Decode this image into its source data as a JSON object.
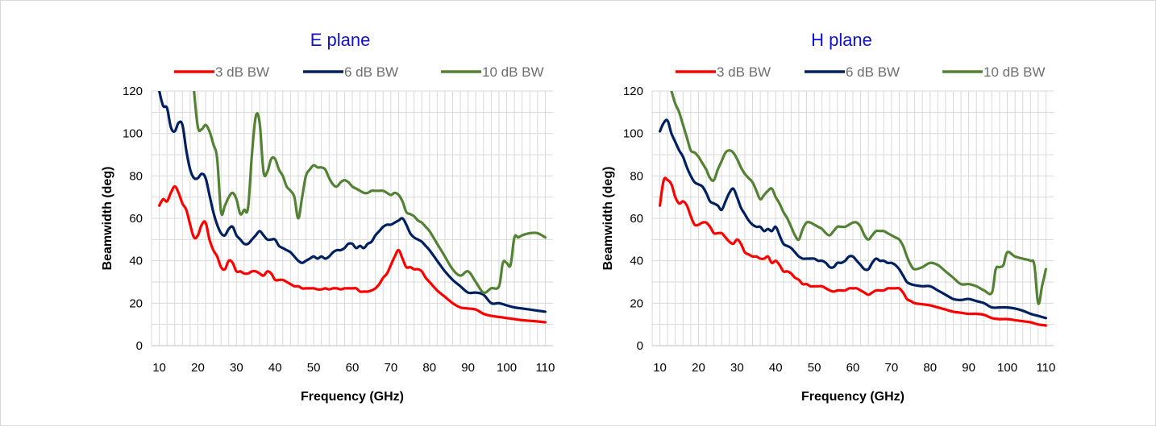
{
  "chart_data": [
    {
      "type": "line",
      "title": "E plane",
      "xlabel": "Frequency  (GHz)",
      "ylabel": "Beamwidth  (deg)",
      "xlim": [
        8,
        112
      ],
      "ylim": [
        0,
        120
      ],
      "xticks": [
        10,
        20,
        30,
        40,
        50,
        60,
        70,
        80,
        90,
        100,
        110
      ],
      "yticks": [
        0,
        20,
        40,
        60,
        80,
        100,
        120
      ],
      "grid": true,
      "legend": "top",
      "series": [
        {
          "name": "3 dB BW",
          "color": "#ff0000",
          "x": [
            10,
            11,
            12,
            13,
            14,
            15,
            16,
            17,
            18,
            19,
            20,
            21,
            22,
            23,
            24,
            25,
            26,
            27,
            28,
            29,
            30,
            31,
            32,
            33,
            34,
            35,
            36,
            37,
            38,
            39,
            40,
            41,
            42,
            43,
            44,
            45,
            46,
            47,
            48,
            49,
            50,
            51,
            52,
            53,
            54,
            55,
            56,
            57,
            58,
            59,
            60,
            61,
            62,
            63,
            64,
            65,
            66,
            67,
            68,
            69,
            70,
            71,
            72,
            73,
            74,
            75,
            76,
            77,
            78,
            79,
            80,
            82,
            84,
            86,
            88,
            90,
            92,
            94,
            96,
            98,
            100,
            102,
            104,
            106,
            108,
            110
          ],
          "y": [
            66,
            69,
            68,
            72,
            75,
            72,
            67,
            64,
            57,
            51,
            52,
            57,
            58,
            50,
            45,
            42,
            37,
            36,
            40,
            39,
            35,
            35,
            34,
            34,
            35,
            35,
            34,
            33,
            35,
            34,
            31,
            31,
            31,
            30,
            29,
            28,
            28,
            27,
            27,
            27,
            27,
            26.5,
            26.5,
            27,
            26.5,
            27,
            27,
            26.5,
            27,
            27,
            27,
            27,
            25.5,
            25.5,
            25.5,
            26,
            27,
            29,
            32,
            34,
            38,
            42,
            45,
            41,
            37,
            37,
            36,
            36,
            35,
            32,
            30,
            26,
            23,
            20,
            18,
            17.5,
            17,
            15,
            14,
            13.5,
            13,
            12.5,
            12,
            11.7,
            11.4,
            11
          ]
        },
        {
          "name": "6 dB BW",
          "color": "#002060",
          "x": [
            10,
            11,
            12,
            13,
            14,
            15,
            16,
            17,
            18,
            19,
            20,
            21,
            22,
            23,
            24,
            25,
            26,
            27,
            28,
            29,
            30,
            31,
            32,
            33,
            34,
            35,
            36,
            37,
            38,
            39,
            40,
            41,
            42,
            43,
            44,
            45,
            46,
            47,
            48,
            49,
            50,
            51,
            52,
            53,
            54,
            55,
            56,
            57,
            58,
            59,
            60,
            61,
            62,
            63,
            64,
            65,
            66,
            67,
            68,
            69,
            70,
            71,
            72,
            73,
            74,
            75,
            76,
            77,
            78,
            79,
            80,
            82,
            84,
            86,
            88,
            90,
            92,
            94,
            96,
            98,
            100,
            102,
            104,
            106,
            108,
            110
          ],
          "y": [
            120,
            113,
            112,
            103,
            101,
            105,
            104,
            92,
            83,
            79,
            79,
            81,
            79,
            71,
            63,
            57,
            53,
            52,
            55,
            56,
            52,
            50,
            48,
            48,
            50,
            52,
            54,
            52,
            50,
            50,
            50,
            47,
            46,
            45,
            44,
            42,
            40,
            39,
            40,
            41,
            42,
            41,
            42,
            41,
            42,
            44,
            45,
            45,
            46,
            48,
            48,
            46,
            47,
            46,
            48,
            49,
            52,
            54,
            56,
            57,
            57,
            58,
            59,
            60,
            57,
            53,
            51,
            50,
            49,
            47,
            45,
            40,
            35,
            31,
            28,
            25,
            25,
            24,
            20,
            20,
            19,
            18,
            17.5,
            17,
            16.5,
            16
          ]
        },
        {
          "name": "10 dB BW",
          "color": "#548235",
          "x": [
            19,
            20,
            21,
            22,
            23,
            24,
            25,
            26,
            27,
            28,
            29,
            30,
            31,
            32,
            33,
            34,
            35,
            36,
            37,
            38,
            39,
            40,
            41,
            42,
            43,
            44,
            45,
            46,
            47,
            48,
            49,
            50,
            51,
            52,
            53,
            54,
            55,
            56,
            57,
            58,
            59,
            60,
            61,
            62,
            63,
            64,
            65,
            66,
            67,
            68,
            69,
            70,
            71,
            72,
            73,
            74,
            75,
            76,
            77,
            78,
            79,
            80,
            82,
            84,
            86,
            88,
            90,
            92,
            94,
            96,
            98,
            99,
            100,
            101,
            102,
            103,
            104,
            106,
            108,
            110
          ],
          "y": [
            120,
            103,
            102,
            104,
            101,
            95,
            88,
            63,
            66,
            70,
            72,
            69,
            62,
            64,
            65,
            90,
            108,
            105,
            82,
            82,
            88,
            88,
            83,
            80,
            75,
            73,
            70,
            60,
            70,
            80,
            83,
            85,
            84,
            84,
            83,
            79,
            76,
            75,
            77,
            78,
            77,
            75,
            74,
            73,
            72,
            72,
            73,
            73,
            73,
            73,
            72,
            71,
            72,
            71,
            68,
            63,
            62,
            61,
            59,
            58,
            56,
            54,
            48,
            42,
            36,
            33,
            35,
            30,
            25,
            27,
            28,
            39,
            39,
            38,
            51,
            51,
            52,
            53,
            53,
            51
          ]
        }
      ]
    },
    {
      "type": "line",
      "title": "H plane",
      "xlabel": "Frequency  (GHz)",
      "ylabel": "Beamwidth  (deg)",
      "xlim": [
        8,
        112
      ],
      "ylim": [
        0,
        120
      ],
      "xticks": [
        10,
        20,
        30,
        40,
        50,
        60,
        70,
        80,
        90,
        100,
        110
      ],
      "yticks": [
        0,
        20,
        40,
        60,
        80,
        100,
        120
      ],
      "grid": true,
      "legend": "top",
      "series": [
        {
          "name": "3 dB BW",
          "color": "#ff0000",
          "x": [
            10,
            11,
            12,
            13,
            14,
            15,
            16,
            17,
            18,
            19,
            20,
            21,
            22,
            23,
            24,
            25,
            26,
            27,
            28,
            29,
            30,
            31,
            32,
            33,
            34,
            35,
            36,
            37,
            38,
            39,
            40,
            41,
            42,
            43,
            44,
            45,
            46,
            47,
            48,
            49,
            50,
            51,
            52,
            53,
            54,
            55,
            56,
            57,
            58,
            59,
            60,
            61,
            62,
            63,
            64,
            65,
            66,
            67,
            68,
            69,
            70,
            71,
            72,
            73,
            74,
            75,
            76,
            78,
            80,
            82,
            84,
            86,
            88,
            90,
            92,
            94,
            96,
            98,
            100,
            102,
            104,
            106,
            108,
            110
          ],
          "y": [
            66,
            78,
            78,
            76,
            70,
            67,
            68,
            66,
            61,
            57,
            57,
            58,
            58,
            56,
            53,
            53,
            53,
            51,
            49,
            48,
            50,
            48,
            44,
            43,
            42,
            42,
            41,
            41,
            42,
            39,
            40,
            38,
            35,
            35,
            34,
            32,
            31,
            29,
            29,
            28,
            28,
            28,
            28,
            27,
            26,
            25.5,
            26,
            26,
            26,
            27,
            27,
            27,
            26,
            25,
            24,
            25,
            26,
            26,
            26,
            27,
            27,
            27,
            27,
            25,
            22,
            21,
            20,
            19.5,
            19,
            18,
            17,
            16,
            15.5,
            15,
            15,
            14.5,
            13,
            12.5,
            12.5,
            12,
            11.5,
            11,
            10,
            9.5
          ]
        },
        {
          "name": "6 dB BW",
          "color": "#002060",
          "x": [
            10,
            11,
            12,
            13,
            14,
            15,
            16,
            17,
            18,
            19,
            20,
            21,
            22,
            23,
            24,
            25,
            26,
            27,
            28,
            29,
            30,
            31,
            32,
            33,
            34,
            35,
            36,
            37,
            38,
            39,
            40,
            41,
            42,
            43,
            44,
            45,
            46,
            47,
            48,
            49,
            50,
            51,
            52,
            53,
            54,
            55,
            56,
            57,
            58,
            59,
            60,
            61,
            62,
            63,
            64,
            65,
            66,
            67,
            68,
            69,
            70,
            71,
            72,
            73,
            74,
            75,
            76,
            78,
            80,
            82,
            84,
            86,
            88,
            90,
            92,
            94,
            96,
            98,
            100,
            102,
            104,
            106,
            108,
            110
          ],
          "y": [
            101,
            105,
            106,
            100,
            96,
            92,
            89,
            84,
            80,
            77,
            76,
            75,
            72,
            68,
            67,
            66,
            64,
            68,
            72,
            74,
            70,
            65,
            62,
            59,
            57,
            56,
            56,
            54,
            55,
            54,
            56,
            52,
            48,
            47,
            46,
            44,
            42,
            41,
            41,
            41,
            41,
            40,
            40,
            39,
            37,
            37,
            39,
            39,
            40,
            42,
            42,
            40,
            38,
            36,
            36,
            39,
            41,
            40,
            40,
            39,
            39,
            38,
            36,
            33,
            30,
            29,
            28.5,
            28,
            28,
            26,
            24,
            22,
            21.5,
            22,
            21,
            20,
            18,
            18,
            18,
            17.5,
            16.5,
            15,
            14,
            13
          ]
        },
        {
          "name": "10 dB BW",
          "color": "#548235",
          "x": [
            12,
            13,
            14,
            15,
            16,
            17,
            18,
            19,
            20,
            21,
            22,
            23,
            24,
            25,
            26,
            27,
            28,
            29,
            30,
            31,
            32,
            33,
            34,
            35,
            36,
            37,
            38,
            39,
            40,
            41,
            42,
            43,
            44,
            45,
            46,
            47,
            48,
            49,
            50,
            51,
            52,
            53,
            54,
            55,
            56,
            57,
            58,
            59,
            60,
            61,
            62,
            63,
            64,
            65,
            66,
            67,
            68,
            69,
            70,
            71,
            72,
            73,
            74,
            75,
            76,
            78,
            80,
            82,
            84,
            86,
            88,
            90,
            92,
            94,
            96,
            97,
            98,
            99,
            100,
            102,
            104,
            106,
            107,
            108,
            109,
            110
          ],
          "y": [
            126,
            120,
            114,
            110,
            104,
            98,
            92,
            91,
            89,
            86,
            83,
            79,
            78,
            83,
            87,
            91,
            92,
            91,
            88,
            84,
            81,
            79,
            77,
            73,
            69,
            71,
            73,
            74,
            70,
            67,
            63,
            60,
            56,
            52,
            50,
            55,
            58,
            58,
            57,
            56,
            55,
            53,
            52,
            54,
            56,
            56,
            56,
            57,
            58,
            58,
            56,
            52,
            50,
            52,
            54,
            54,
            54,
            53,
            52,
            51,
            50,
            47,
            42,
            38,
            36,
            37,
            39,
            38,
            35,
            32,
            29,
            29,
            28,
            26,
            25,
            36,
            37,
            38,
            44,
            42,
            41,
            40,
            38,
            20,
            28,
            36
          ]
        }
      ]
    }
  ]
}
